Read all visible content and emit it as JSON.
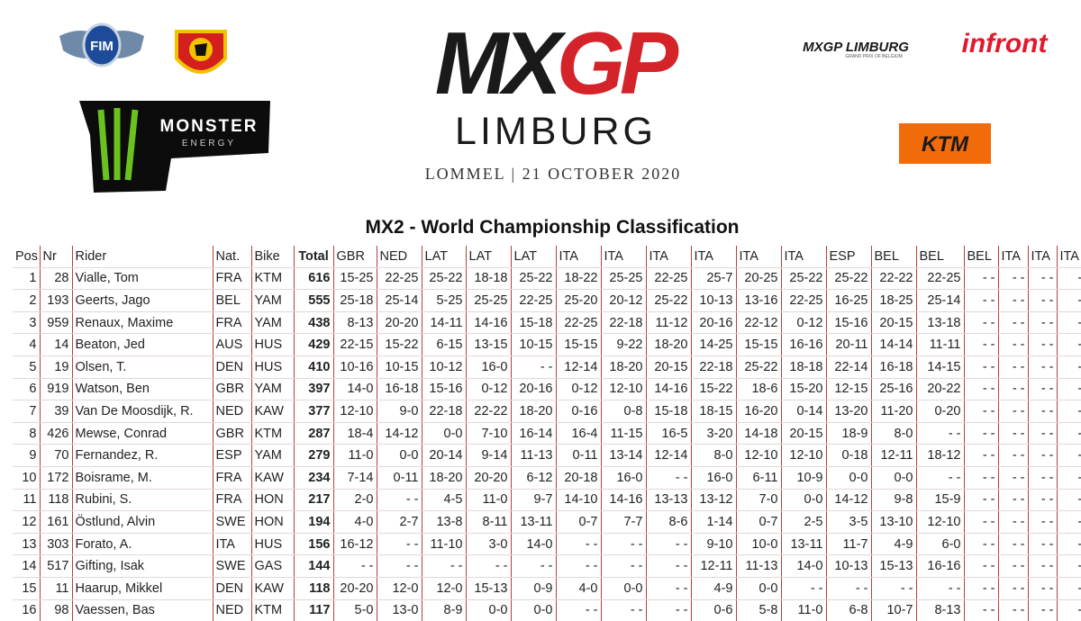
{
  "header": {
    "fim": "FIM",
    "monster": "MONSTER",
    "monster_sub": "ENERGY",
    "mxgp_left": "MX",
    "mxgp_right": "GP",
    "event_name": "LIMBURG",
    "event_info": "LOMMEL | 21 OCTOBER 2020",
    "sponsor_mxgp": "MXGP LIMBURG",
    "sponsor_mxgp_sub": "GRAND PRIX OF BELGIUM",
    "infront": "infront",
    "ktm": "KTM"
  },
  "title": "MX2 - World Championship Classification",
  "table": {
    "columns": [
      "Pos",
      "Nr",
      "Rider",
      "Nat.",
      "Bike",
      "Total",
      "GBR",
      "NED",
      "LAT",
      "LAT",
      "LAT",
      "ITA",
      "ITA",
      "ITA",
      "ITA",
      "ITA",
      "ITA",
      "ESP",
      "BEL",
      "BEL",
      "BEL",
      "ITA",
      "ITA",
      "ITA"
    ],
    "rows": [
      [
        1,
        28,
        "Vialle, Tom",
        "FRA",
        "KTM",
        616,
        "15-25",
        "22-25",
        "25-22",
        "18-18",
        "25-22",
        "18-22",
        "25-25",
        "22-25",
        "25-7",
        "20-25",
        "25-22",
        "25-22",
        "22-22",
        "22-25",
        "- -",
        "- -",
        "- -",
        "- -"
      ],
      [
        2,
        193,
        "Geerts, Jago",
        "BEL",
        "YAM",
        555,
        "25-18",
        "25-14",
        "5-25",
        "25-25",
        "22-25",
        "25-20",
        "20-12",
        "25-22",
        "10-13",
        "13-16",
        "22-25",
        "16-25",
        "18-25",
        "25-14",
        "- -",
        "- -",
        "- -",
        "- -"
      ],
      [
        3,
        959,
        "Renaux, Maxime",
        "FRA",
        "YAM",
        438,
        "8-13",
        "20-20",
        "14-11",
        "14-16",
        "15-18",
        "22-25",
        "22-18",
        "11-12",
        "20-16",
        "22-12",
        "0-12",
        "15-16",
        "20-15",
        "13-18",
        "- -",
        "- -",
        "- -",
        "- -"
      ],
      [
        4,
        14,
        "Beaton, Jed",
        "AUS",
        "HUS",
        429,
        "22-15",
        "15-22",
        "6-15",
        "13-15",
        "10-15",
        "15-15",
        "9-22",
        "18-20",
        "14-25",
        "15-15",
        "16-16",
        "20-11",
        "14-14",
        "11-11",
        "- -",
        "- -",
        "- -",
        "- -"
      ],
      [
        5,
        19,
        "Olsen, T.",
        "DEN",
        "HUS",
        410,
        "10-16",
        "10-15",
        "10-12",
        "16-0",
        "- -",
        "12-14",
        "18-20",
        "20-15",
        "22-18",
        "25-22",
        "18-18",
        "22-14",
        "16-18",
        "14-15",
        "- -",
        "- -",
        "- -",
        "- -"
      ],
      [
        6,
        919,
        "Watson, Ben",
        "GBR",
        "YAM",
        397,
        "14-0",
        "16-18",
        "15-16",
        "0-12",
        "20-16",
        "0-12",
        "12-10",
        "14-16",
        "15-22",
        "18-6",
        "15-20",
        "12-15",
        "25-16",
        "20-22",
        "- -",
        "- -",
        "- -",
        "- -"
      ],
      [
        7,
        39,
        "Van De Moosdijk, R.",
        "NED",
        "KAW",
        377,
        "12-10",
        "9-0",
        "22-18",
        "22-22",
        "18-20",
        "0-16",
        "0-8",
        "15-18",
        "18-15",
        "16-20",
        "0-14",
        "13-20",
        "11-20",
        "0-20",
        "- -",
        "- -",
        "- -",
        "- -"
      ],
      [
        8,
        426,
        "Mewse, Conrad",
        "GBR",
        "KTM",
        287,
        "18-4",
        "14-12",
        "0-0",
        "7-10",
        "16-14",
        "16-4",
        "11-15",
        "16-5",
        "3-20",
        "14-18",
        "20-15",
        "18-9",
        "8-0",
        "- -",
        "- -",
        "- -",
        "- -",
        "- -"
      ],
      [
        9,
        70,
        "Fernandez, R.",
        "ESP",
        "YAM",
        279,
        "11-0",
        "0-0",
        "20-14",
        "9-14",
        "11-13",
        "0-11",
        "13-14",
        "12-14",
        "8-0",
        "12-10",
        "12-10",
        "0-18",
        "12-11",
        "18-12",
        "- -",
        "- -",
        "- -",
        "- -"
      ],
      [
        10,
        172,
        "Boisrame, M.",
        "FRA",
        "KAW",
        234,
        "7-14",
        "0-11",
        "18-20",
        "20-20",
        "6-12",
        "20-18",
        "16-0",
        "- -",
        "16-0",
        "6-11",
        "10-9",
        "0-0",
        "0-0",
        "- -",
        "- -",
        "- -",
        "- -",
        "- -"
      ],
      [
        11,
        118,
        "Rubini, S.",
        "FRA",
        "HON",
        217,
        "2-0",
        "- -",
        "4-5",
        "11-0",
        "9-7",
        "14-10",
        "14-16",
        "13-13",
        "13-12",
        "7-0",
        "0-0",
        "14-12",
        "9-8",
        "15-9",
        "- -",
        "- -",
        "- -",
        "- -"
      ],
      [
        12,
        161,
        "Östlund, Alvin",
        "SWE",
        "HON",
        194,
        "4-0",
        "2-7",
        "13-8",
        "8-11",
        "13-11",
        "0-7",
        "7-7",
        "8-6",
        "1-14",
        "0-7",
        "2-5",
        "3-5",
        "13-10",
        "12-10",
        "- -",
        "- -",
        "- -",
        "- -"
      ],
      [
        13,
        303,
        "Forato, A.",
        "ITA",
        "HUS",
        156,
        "16-12",
        "- -",
        "11-10",
        "3-0",
        "14-0",
        "- -",
        "- -",
        "- -",
        "9-10",
        "10-0",
        "13-11",
        "11-7",
        "4-9",
        "6-0",
        "- -",
        "- -",
        "- -",
        "- -"
      ],
      [
        14,
        517,
        "Gifting, Isak",
        "SWE",
        "GAS",
        144,
        "- -",
        "- -",
        "- -",
        "- -",
        "- -",
        "- -",
        "- -",
        "- -",
        "12-11",
        "11-13",
        "14-0",
        "10-13",
        "15-13",
        "16-16",
        "- -",
        "- -",
        "- -",
        "- -"
      ],
      [
        15,
        11,
        "Haarup, Mikkel",
        "DEN",
        "KAW",
        118,
        "20-20",
        "12-0",
        "12-0",
        "15-13",
        "0-9",
        "4-0",
        "0-0",
        "- -",
        "4-9",
        "0-0",
        "- -",
        "- -",
        "- -",
        "- -",
        "- -",
        "- -",
        "- -",
        "- -"
      ],
      [
        16,
        98,
        "Vaessen, Bas",
        "NED",
        "KTM",
        117,
        "5-0",
        "13-0",
        "8-9",
        "0-0",
        "0-0",
        "- -",
        "- -",
        "- -",
        "0-6",
        "5-8",
        "11-0",
        "6-8",
        "10-7",
        "8-13",
        "- -",
        "- -",
        "- -",
        "- -"
      ]
    ]
  }
}
